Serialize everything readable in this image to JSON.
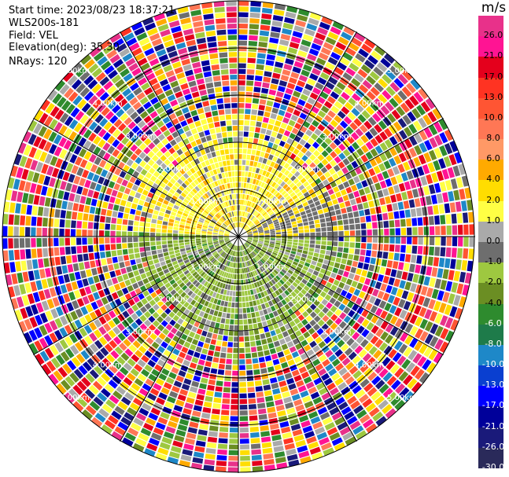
{
  "header": {
    "start_time": "Start time: 2023/08/23 18:37:21",
    "instrument": "WLS200s-181",
    "field": "Field: VEL",
    "elevation": "Elevation(deg): 35.30",
    "nrays": "NRays: 120"
  },
  "colorbar": {
    "title": "m/s",
    "ticks": [
      "26.0",
      "21.0",
      "17.0",
      "13.0",
      "10.0",
      "8.0",
      "6.0",
      "4.0",
      "2.0",
      "1.0",
      "0.0",
      "-1.0",
      "-2.0",
      "-4.0",
      "-6.0",
      "-8.0",
      "-10.0",
      "-13.0",
      "-17.0",
      "-21.0",
      "-26.0",
      "-30.0"
    ],
    "colors": [
      "#e8318a",
      "#ff1493",
      "#e4001c",
      "#ff3322",
      "#ff5533",
      "#ff7755",
      "#ff9966",
      "#ffaa00",
      "#ffdd00",
      "#ffff44",
      "#aaaaaa",
      "#6e6e6e",
      "#9ec840",
      "#6b8e23",
      "#2e8b2e",
      "#1e7b4a",
      "#1e88c8",
      "#0a3fd0",
      "#0000ff",
      "#00009a",
      "#1a1a7a",
      "#2a2a5a"
    ]
  },
  "range_labels": [
    "1.00km",
    "2.00km",
    "3.00km",
    "4.00km",
    "5.00km",
    "1.00km",
    "2.00km",
    "3.00km",
    "4.00km",
    "5.00km",
    "1.00km",
    "2.00km",
    "3.00km",
    "4.00km",
    "5.00km",
    "1.00km",
    "2.00km",
    "3.00km",
    "4.00km",
    "5.00km"
  ],
  "noise_palette": [
    "#ff1493",
    "#e8318a",
    "#ff3322",
    "#e4001c",
    "#0000ff",
    "#00009a",
    "#1a1a7a",
    "#ffaa00",
    "#ff7755",
    "#ffdd00",
    "#2e8b2e",
    "#6b8e23",
    "#1e88c8",
    "#6e6e6e",
    "#aaaaaa",
    "#ff5533",
    "#9ec840",
    "#ffff44"
  ]
}
